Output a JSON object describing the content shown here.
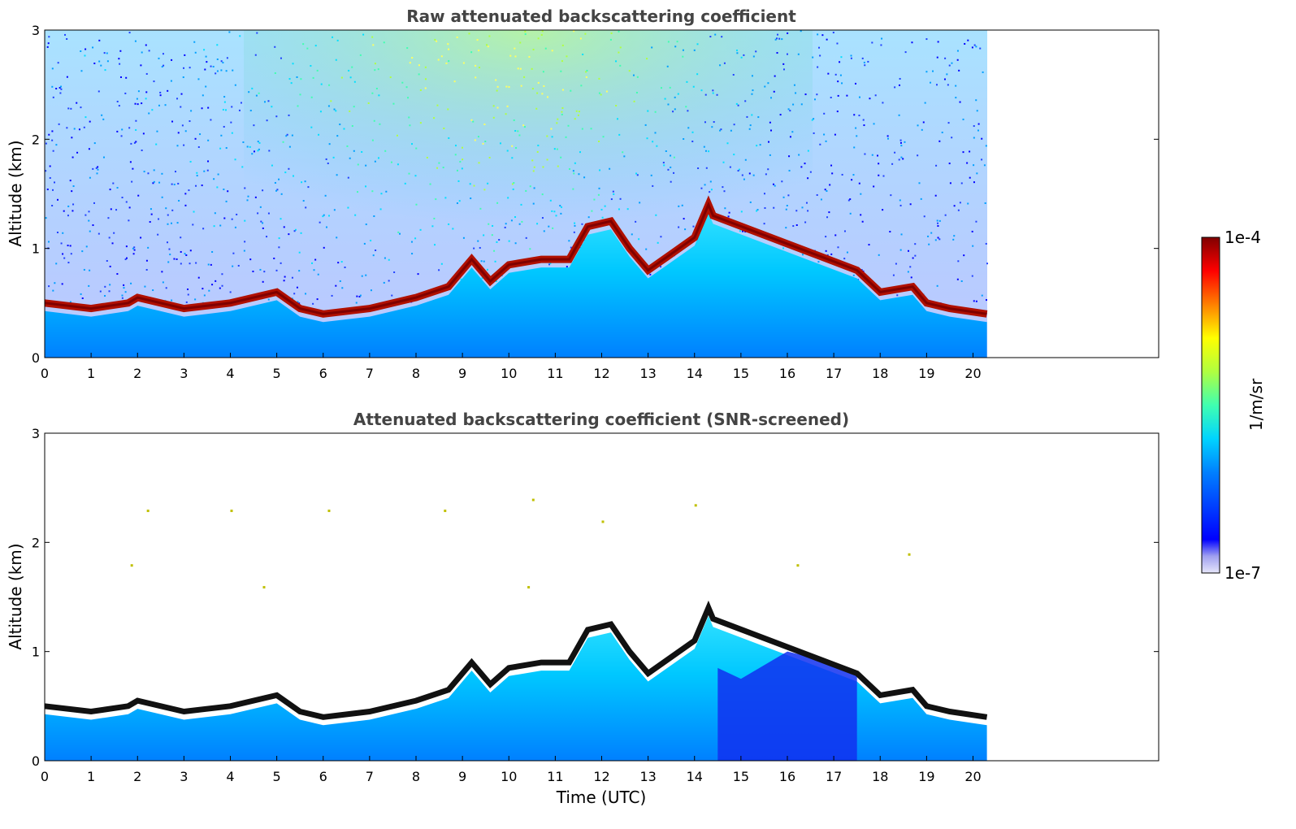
{
  "chart_data": [
    {
      "type": "heatmap",
      "title": "Raw attenuated backscattering coefficient",
      "xlabel": "",
      "ylabel": "Altitude (km)",
      "xlim": [
        0,
        24
      ],
      "ylim": [
        0,
        3
      ],
      "x_ticks": [
        0,
        1,
        2,
        3,
        4,
        5,
        6,
        7,
        8,
        9,
        10,
        11,
        12,
        13,
        14,
        15,
        16,
        17,
        18,
        19,
        20
      ],
      "y_ticks": [
        0,
        1,
        2,
        3
      ],
      "data_extent_x": [
        0,
        20.3
      ],
      "layer_top_km": [
        [
          0,
          0.5
        ],
        [
          1,
          0.45
        ],
        [
          1.8,
          0.5
        ],
        [
          2,
          0.55
        ],
        [
          3,
          0.45
        ],
        [
          4,
          0.5
        ],
        [
          5,
          0.6
        ],
        [
          5.5,
          0.45
        ],
        [
          6,
          0.4
        ],
        [
          7,
          0.45
        ],
        [
          8,
          0.55
        ],
        [
          8.7,
          0.65
        ],
        [
          9.2,
          0.9
        ],
        [
          9.6,
          0.7
        ],
        [
          10,
          0.85
        ],
        [
          10.7,
          0.9
        ],
        [
          11.3,
          0.9
        ],
        [
          11.7,
          1.2
        ],
        [
          12.2,
          1.25
        ],
        [
          12.6,
          1.0
        ],
        [
          13,
          0.8
        ],
        [
          13.5,
          0.95
        ],
        [
          14,
          1.1
        ],
        [
          14.3,
          1.4
        ],
        [
          14.4,
          1.3
        ],
        [
          17.5,
          0.8
        ],
        [
          18,
          0.6
        ],
        [
          18.7,
          0.65
        ],
        [
          19,
          0.5
        ],
        [
          19.5,
          0.45
        ],
        [
          20.3,
          0.4
        ]
      ]
    },
    {
      "type": "heatmap",
      "title": "Attenuated backscattering coefficient (SNR-screened)",
      "xlabel": "Time (UTC)",
      "ylabel": "Altitude (km)",
      "xlim": [
        0,
        24
      ],
      "ylim": [
        0,
        3
      ],
      "x_ticks": [
        0,
        1,
        2,
        3,
        4,
        5,
        6,
        7,
        8,
        9,
        10,
        11,
        12,
        13,
        14,
        15,
        16,
        17,
        18,
        19,
        20
      ],
      "y_ticks": [
        0,
        1,
        2,
        3
      ],
      "data_extent_x": [
        0,
        20.3
      ]
    }
  ],
  "colorbar": {
    "label": "1/m/sr",
    "max_label": "1e-4",
    "min_label": "1e-7",
    "colormap": "jet"
  },
  "colors": {
    "title": "#444444",
    "low": "#e6e6fa",
    "blue": "#0000ff",
    "cyan": "#00d4ff",
    "yellow": "#ffff00",
    "red": "#ff0000",
    "darkred": "#800000"
  }
}
